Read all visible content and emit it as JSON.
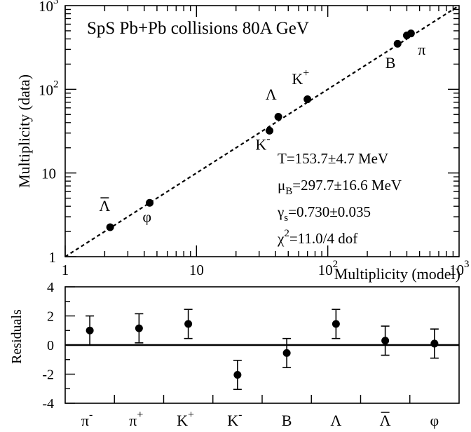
{
  "chart_data": [
    {
      "type": "scatter",
      "title": "SpS Pb+Pb collisions 80A GeV",
      "xlabel": "Multiplicity (model)",
      "ylabel": "Multiplicity (data)",
      "xscale": "log",
      "yscale": "log",
      "xlim": [
        1,
        1000
      ],
      "ylim": [
        1,
        1000
      ],
      "x_ticks": [
        {
          "value": 1,
          "base": "1",
          "exp": ""
        },
        {
          "value": 10,
          "base": "10",
          "exp": ""
        },
        {
          "value": 100,
          "base": "10",
          "exp": "2"
        },
        {
          "value": 1000,
          "base": "10",
          "exp": "3"
        }
      ],
      "y_ticks": [
        {
          "value": 1,
          "base": "1",
          "exp": ""
        },
        {
          "value": 10,
          "base": "10",
          "exp": ""
        },
        {
          "value": 100,
          "base": "10",
          "exp": "2"
        },
        {
          "value": 1000,
          "base": "10",
          "exp": "3"
        }
      ],
      "reference_line": {
        "style": "dashed",
        "from": [
          1,
          1
        ],
        "to": [
          1000,
          1000
        ]
      },
      "points": [
        {
          "x": 2.2,
          "y": 2.25
        },
        {
          "x": 4.4,
          "y": 4.4
        },
        {
          "x": 36,
          "y": 32
        },
        {
          "x": 42,
          "y": 47
        },
        {
          "x": 70,
          "y": 76
        },
        {
          "x": 340,
          "y": 350
        },
        {
          "x": 400,
          "y": 440
        },
        {
          "x": 430,
          "y": 465
        }
      ],
      "point_labels": [
        {
          "base": "Λ",
          "bar": true,
          "sup": "",
          "sub": "",
          "x": 2.0,
          "y": 3.5
        },
        {
          "base": "φ",
          "bar": false,
          "sup": "",
          "sub": "",
          "x": 4.2,
          "y": 2.6
        },
        {
          "base": "K",
          "bar": false,
          "sup": "-",
          "sub": "",
          "x": 32,
          "y": 19
        },
        {
          "base": "Λ",
          "bar": false,
          "sup": "",
          "sub": "",
          "x": 37,
          "y": 75
        },
        {
          "base": "K",
          "bar": false,
          "sup": "+",
          "sub": "",
          "x": 62,
          "y": 115
        },
        {
          "base": "B",
          "bar": false,
          "sup": "",
          "sub": "",
          "x": 300,
          "y": 180
        },
        {
          "base": "π",
          "bar": false,
          "sup": "",
          "sub": "",
          "x": 520,
          "y": 260
        }
      ],
      "annotations": [
        {
          "pre": "T=153.7±4.7 MeV",
          "sub": "",
          "sup": "",
          "post": ""
        },
        {
          "pre": "μ",
          "sub": "B",
          "sup": "",
          "post": "=297.7±16.6 MeV"
        },
        {
          "pre": "γ",
          "sub": "s",
          "sup": "",
          "post": "=0.730±0.035"
        },
        {
          "pre": "χ",
          "sub": "",
          "sup": "2",
          "post": "=11.0/4 dof"
        }
      ]
    },
    {
      "type": "scatter",
      "ylabel": "Residuals",
      "ylim": [
        -4,
        4
      ],
      "y_ticks": [
        4,
        2,
        0,
        -2,
        -4
      ],
      "zero_line": 0,
      "categories": [
        {
          "base": "π",
          "bar": false,
          "sup": "-"
        },
        {
          "base": "π",
          "bar": false,
          "sup": "+"
        },
        {
          "base": "K",
          "bar": false,
          "sup": "+"
        },
        {
          "base": "K",
          "bar": false,
          "sup": "-"
        },
        {
          "base": "B",
          "bar": false,
          "sup": ""
        },
        {
          "base": "Λ",
          "bar": false,
          "sup": ""
        },
        {
          "base": "Λ",
          "bar": true,
          "sup": ""
        },
        {
          "base": "φ",
          "bar": false,
          "sup": ""
        }
      ],
      "values": [
        1.0,
        1.15,
        1.45,
        -2.05,
        -0.55,
        1.45,
        0.3,
        0.1
      ],
      "errors": [
        1.0,
        1.0,
        1.0,
        1.0,
        1.0,
        1.0,
        1.0,
        1.0
      ]
    }
  ]
}
